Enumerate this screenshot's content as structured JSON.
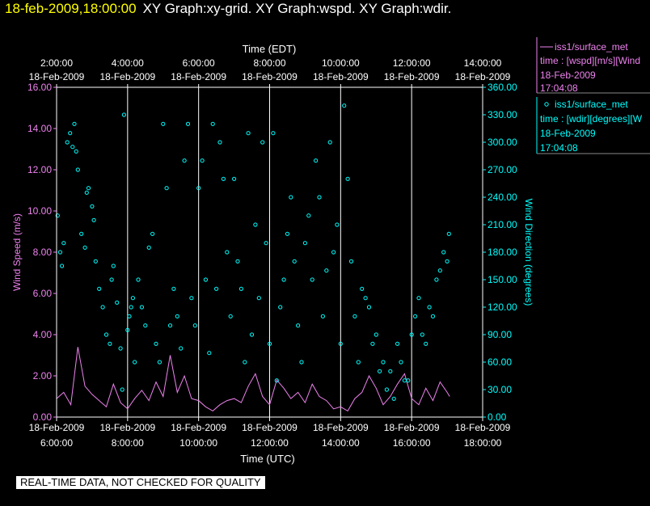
{
  "header": {
    "timestamp": "18-feb-2009,18:00:00",
    "title": "XY Graph:xy-grid.  XY Graph:wspd.  XY Graph:wdir."
  },
  "warning": "REAL-TIME DATA, NOT CHECKED FOR QUALITY",
  "colors": {
    "wspd": "#ee82ee",
    "wdir": "#00ffff",
    "title": "#ffff00",
    "grid": "#ffffff"
  },
  "legend": {
    "wspd": {
      "name": "iss1/surface_met",
      "line2": "time : [wspd][m/s][Wind",
      "date": "18-Feb-2009",
      "time": "17:04:08"
    },
    "wdir": {
      "name": "iss1/surface_met",
      "line2": "time : [wdir][degrees][W",
      "date": "18-Feb-2009",
      "time": "17:04:08"
    }
  },
  "chart_data": {
    "type": "scatter",
    "top_axis_label": "Time (EDT)",
    "bottom_axis_label": "Time (UTC)",
    "ylabel_left": "Wind Speed (m/s)",
    "ylabel_right": "Wind Direction (degrees)",
    "top_ticks": [
      {
        "time": "2:00:00",
        "date": "18-Feb-2009"
      },
      {
        "time": "4:00:00",
        "date": "18-Feb-2009"
      },
      {
        "time": "6:00:00",
        "date": "18-Feb-2009"
      },
      {
        "time": "8:00:00",
        "date": "18-Feb-2009"
      },
      {
        "time": "10:00:00",
        "date": "18-Feb-2009"
      },
      {
        "time": "12:00:00",
        "date": "18-Feb-2009"
      },
      {
        "time": "14:00:00",
        "date": "18-Feb-2009"
      }
    ],
    "bottom_ticks": [
      {
        "date": "18-Feb-2009",
        "time": "6:00:00"
      },
      {
        "date": "18-Feb-2009",
        "time": "8:00:00"
      },
      {
        "date": "18-Feb-2009",
        "time": "10:00:00"
      },
      {
        "date": "18-Feb-2009",
        "time": "12:00:00"
      },
      {
        "date": "18-Feb-2009",
        "time": "14:00:00"
      },
      {
        "date": "18-Feb-2009",
        "time": "16:00:00"
      },
      {
        "date": "18-Feb-2009",
        "time": "18:00:00"
      }
    ],
    "xlim_utc_hours": [
      6,
      18
    ],
    "ylim_left": [
      0,
      16
    ],
    "ylim_right": [
      0,
      360
    ],
    "y_ticks_left": [
      "0.00",
      "2.00",
      "4.00",
      "6.00",
      "8.00",
      "10.00",
      "12.00",
      "14.00",
      "16.00"
    ],
    "y_ticks_right": [
      "0.00",
      "30.00",
      "60.00",
      "90.00",
      "120.00",
      "150.00",
      "180.00",
      "210.00",
      "240.00",
      "270.00",
      "300.00",
      "330.00",
      "360.00"
    ],
    "grid_vertical": true,
    "series": [
      {
        "name": "wspd",
        "axis": "left",
        "style": "line",
        "x": [
          6.0,
          6.2,
          6.4,
          6.6,
          6.8,
          7.0,
          7.2,
          7.4,
          7.6,
          7.8,
          8.0,
          8.2,
          8.4,
          8.6,
          8.8,
          9.0,
          9.2,
          9.4,
          9.6,
          9.8,
          10.0,
          10.2,
          10.4,
          10.6,
          10.8,
          11.0,
          11.2,
          11.4,
          11.6,
          11.8,
          12.0,
          12.2,
          12.4,
          12.6,
          12.8,
          13.0,
          13.2,
          13.4,
          13.6,
          13.8,
          14.0,
          14.2,
          14.4,
          14.6,
          14.8,
          15.0,
          15.2,
          15.4,
          15.6,
          15.8,
          16.0,
          16.2,
          16.4,
          16.6,
          16.8,
          17.0,
          17.07
        ],
        "y": [
          0.9,
          1.2,
          0.6,
          3.4,
          1.5,
          1.1,
          0.8,
          0.5,
          1.6,
          0.7,
          0.4,
          0.9,
          1.3,
          0.8,
          1.7,
          1.0,
          3.0,
          1.2,
          2.0,
          0.9,
          0.8,
          0.5,
          0.3,
          0.6,
          0.8,
          0.9,
          0.7,
          1.5,
          2.1,
          1.0,
          0.6,
          1.8,
          1.4,
          0.9,
          1.2,
          0.7,
          1.6,
          1.0,
          0.8,
          0.4,
          0.5,
          0.3,
          0.9,
          1.2,
          2.0,
          1.4,
          0.6,
          1.0,
          1.6,
          2.1,
          0.9,
          0.6,
          1.4,
          0.8,
          1.7,
          1.2,
          1.0
        ]
      },
      {
        "name": "wdir",
        "axis": "right",
        "style": "scatter",
        "x": [
          6.03,
          6.1,
          6.15,
          6.2,
          6.3,
          6.38,
          6.45,
          6.5,
          6.55,
          6.6,
          6.7,
          6.8,
          6.85,
          6.9,
          7.0,
          7.05,
          7.1,
          7.2,
          7.3,
          7.4,
          7.5,
          7.55,
          7.6,
          7.7,
          7.8,
          7.85,
          7.9,
          8.0,
          8.05,
          8.1,
          8.15,
          8.2,
          8.3,
          8.4,
          8.5,
          8.6,
          8.7,
          8.8,
          8.9,
          9.0,
          9.1,
          9.2,
          9.3,
          9.4,
          9.5,
          9.6,
          9.7,
          9.8,
          9.9,
          10.0,
          10.1,
          10.2,
          10.3,
          10.4,
          10.5,
          10.6,
          10.7,
          10.8,
          10.9,
          11.0,
          11.1,
          11.2,
          11.3,
          11.4,
          11.5,
          11.6,
          11.7,
          11.8,
          11.9,
          12.0,
          12.1,
          12.2,
          12.3,
          12.4,
          12.5,
          12.6,
          12.7,
          12.8,
          12.9,
          13.0,
          13.1,
          13.2,
          13.3,
          13.4,
          13.5,
          13.6,
          13.7,
          13.8,
          13.9,
          14.0,
          14.1,
          14.2,
          14.3,
          14.4,
          14.5,
          14.6,
          14.7,
          14.8,
          14.9,
          15.0,
          15.1,
          15.2,
          15.3,
          15.4,
          15.5,
          15.6,
          15.7,
          15.8,
          15.9,
          16.0,
          16.1,
          16.2,
          16.3,
          16.4,
          16.5,
          16.6,
          16.7,
          16.8,
          16.9,
          17.0,
          17.05
        ],
        "y": [
          220,
          180,
          165,
          190,
          300,
          310,
          295,
          320,
          290,
          270,
          200,
          185,
          245,
          250,
          230,
          215,
          170,
          140,
          120,
          90,
          80,
          150,
          165,
          125,
          75,
          30,
          330,
          95,
          110,
          120,
          130,
          60,
          150,
          120,
          100,
          185,
          200,
          80,
          60,
          320,
          250,
          100,
          140,
          110,
          75,
          280,
          320,
          130,
          100,
          250,
          280,
          150,
          70,
          320,
          140,
          300,
          260,
          180,
          110,
          260,
          170,
          140,
          60,
          310,
          90,
          210,
          130,
          300,
          190,
          80,
          310,
          40,
          120,
          150,
          200,
          240,
          170,
          100,
          60,
          190,
          220,
          150,
          280,
          240,
          110,
          160,
          300,
          180,
          210,
          80,
          340,
          260,
          170,
          110,
          60,
          140,
          130,
          120,
          80,
          90,
          50,
          60,
          30,
          50,
          20,
          80,
          60,
          40,
          40,
          90,
          110,
          130,
          90,
          80,
          120,
          110,
          150,
          160,
          180,
          170,
          200
        ]
      }
    ]
  }
}
